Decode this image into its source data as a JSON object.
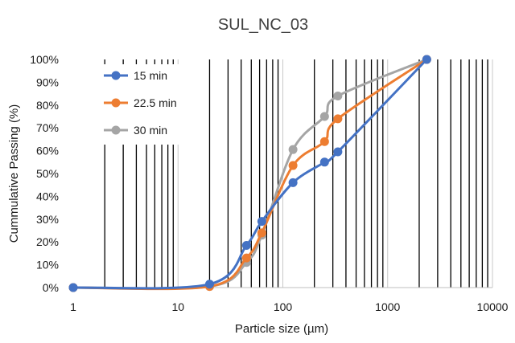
{
  "chart_data": {
    "type": "line",
    "title": "SUL_NC_03",
    "xlabel": "Particle size (µm)",
    "ylabel": "Cummulative Passing (%)",
    "x_scale": "log",
    "xlim": [
      1,
      10000
    ],
    "ylim": [
      0,
      100
    ],
    "x_tick_labels": [
      "1",
      "10",
      "100",
      "1000",
      "10000"
    ],
    "y_tick_labels": [
      "0%",
      "10%",
      "20%",
      "30%",
      "40%",
      "50%",
      "60%",
      "70%",
      "80%",
      "90%",
      "100%"
    ],
    "grid": "log minor vertical lines",
    "legend_position": "top-left",
    "series": [
      {
        "name": "15 min",
        "color": "#4472C4",
        "x": [
          1,
          20,
          45,
          63,
          125,
          250,
          335,
          2360
        ],
        "y": [
          0,
          1.5,
          18.5,
          29,
          46,
          55,
          59.5,
          100
        ]
      },
      {
        "name": "22.5 min",
        "color": "#ED7D31",
        "x": [
          1,
          20,
          45,
          63,
          125,
          250,
          335,
          2360
        ],
        "y": [
          0,
          0.5,
          13,
          24,
          53.5,
          64,
          74,
          100
        ]
      },
      {
        "name": "30 min",
        "color": "#A5A5A5",
        "x": [
          1,
          20,
          45,
          63,
          125,
          250,
          335,
          2360
        ],
        "y": [
          0,
          0.5,
          11,
          23,
          60.5,
          75,
          84,
          100
        ]
      }
    ]
  }
}
